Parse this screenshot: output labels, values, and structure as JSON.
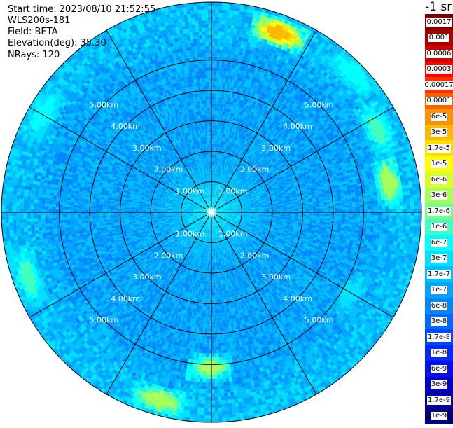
{
  "info": {
    "start_time": "Start time: 2023/08/10 21:52:55",
    "instrument": "WLS200s-181",
    "field": "Field: BETA",
    "elevation": "Elevation(deg): 35.30",
    "nrays": "NRays: 120"
  },
  "colorbar": {
    "title": "-1 sr",
    "segments": [
      {
        "label": "0.0017",
        "color": "#7a0000"
      },
      {
        "label": "0.001",
        "color": "#a80000"
      },
      {
        "label": "0.0006",
        "color": "#d40000"
      },
      {
        "label": "0.0003",
        "color": "#ff0000"
      },
      {
        "label": "0.00017",
        "color": "#ff3000"
      },
      {
        "label": "0.0001",
        "color": "#ff6000"
      },
      {
        "label": "6e-5",
        "color": "#ff9000"
      },
      {
        "label": "3e-5",
        "color": "#ffb800"
      },
      {
        "label": "1.7e-5",
        "color": "#ffdc00"
      },
      {
        "label": "1e-5",
        "color": "#ffff00"
      },
      {
        "label": "6e-6",
        "color": "#d8ff28"
      },
      {
        "label": "3e-6",
        "color": "#a8ff58"
      },
      {
        "label": "1.7e-6",
        "color": "#78ff88"
      },
      {
        "label": "1e-6",
        "color": "#40ffc0"
      },
      {
        "label": "6e-7",
        "color": "#00ffff"
      },
      {
        "label": "3e-7",
        "color": "#00e0ff"
      },
      {
        "label": "1.7e-7",
        "color": "#00c0ff"
      },
      {
        "label": "1e-7",
        "color": "#00a4ff"
      },
      {
        "label": "6e-8",
        "color": "#0088ff"
      },
      {
        "label": "3e-8",
        "color": "#0068ff"
      },
      {
        "label": "1.7e-8",
        "color": "#0048ff"
      },
      {
        "label": "1e-8",
        "color": "#0028ff"
      },
      {
        "label": "6e-9",
        "color": "#0010f0"
      },
      {
        "label": "3e-9",
        "color": "#0000c8"
      },
      {
        "label": "1.7e-9",
        "color": "#0000a0"
      },
      {
        "label": "1e-9",
        "color": "#000078"
      }
    ]
  },
  "chart_data": {
    "type": "heatmap",
    "projection": "polar",
    "field": "BETA",
    "rays": 120,
    "range_rings_km": [
      1,
      2,
      3,
      4,
      5
    ],
    "range_ring_labels": [
      "1.00km",
      "2.00km",
      "3.00km",
      "4.00km",
      "5.00km"
    ],
    "max_range_km": 6.9,
    "spoke_angles_deg": [
      0,
      30,
      60,
      90,
      120,
      150,
      180,
      210,
      240,
      270,
      300,
      330
    ],
    "background_level": "1e-7",
    "range_profile": [
      {
        "range_km": 0.3,
        "level": "3e-7"
      },
      {
        "range_km": 1.0,
        "level": "1.7e-7"
      },
      {
        "range_km": 2.0,
        "level": "1e-7"
      },
      {
        "range_km": 3.0,
        "level": "1e-7"
      },
      {
        "range_km": 4.0,
        "level": "1e-7"
      },
      {
        "range_km": 5.0,
        "level": "1e-7"
      },
      {
        "range_km": 6.5,
        "level": "1.7e-7"
      }
    ],
    "hotspots": [
      {
        "azimuth_deg": 20,
        "range_km": 6.3,
        "level": "3e-5"
      },
      {
        "azimuth_deg": 45,
        "range_km": 6.5,
        "level": "6e-7"
      },
      {
        "azimuth_deg": 63,
        "range_km": 6.1,
        "level": "1e-6"
      },
      {
        "azimuth_deg": 80,
        "range_km": 5.9,
        "level": "3e-6"
      },
      {
        "azimuth_deg": 120,
        "range_km": 5.3,
        "level": "3e-7"
      },
      {
        "azimuth_deg": 180,
        "range_km": 5.1,
        "level": "3e-6"
      },
      {
        "azimuth_deg": 195,
        "range_km": 6.4,
        "level": "3e-6"
      },
      {
        "azimuth_deg": 250,
        "range_km": 6.4,
        "level": "1e-6"
      },
      {
        "azimuth_deg": 300,
        "range_km": 6.4,
        "level": "6e-7"
      }
    ]
  }
}
